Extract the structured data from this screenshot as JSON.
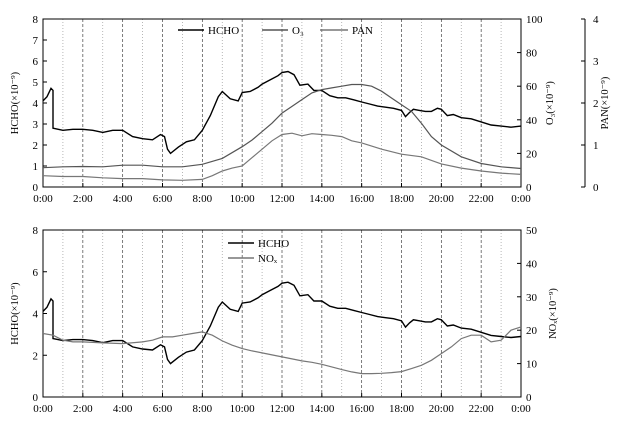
{
  "chart_data": [
    {
      "type": "line",
      "x_ticks": [
        "0:00",
        "2:00",
        "4:00",
        "6:00",
        "8:00",
        "10:00",
        "12:00",
        "14:00",
        "16:00",
        "18:00",
        "20:00",
        "22:00",
        "0:00"
      ],
      "xlim": [
        0,
        24
      ],
      "grid": "vertical dotted lines every hour, dashed at each 2 hours",
      "legend_position": "top-center",
      "axes": {
        "left": {
          "label": "HCHO(×10⁻⁹)",
          "ylim": [
            0,
            8
          ],
          "ticks": [
            "0",
            "1",
            "2",
            "3",
            "4",
            "5",
            "6",
            "7",
            "8"
          ]
        },
        "right1": {
          "label": "O₃(×10⁻⁹)",
          "ylim": [
            0,
            100
          ],
          "ticks": [
            "0",
            "20",
            "40",
            "60",
            "80",
            "100"
          ]
        },
        "right2": {
          "label": "PAN(×10⁻⁹)",
          "ylim": [
            0,
            4
          ],
          "ticks": [
            "0",
            "1",
            "2",
            "3",
            "4"
          ]
        }
      },
      "series": [
        {
          "name": "HCHO",
          "axis": "left",
          "color": "#000000",
          "x": [
            0,
            0.2,
            0.4,
            0.5,
            0.5,
            1,
            1.5,
            2,
            2.5,
            3,
            3.5,
            4,
            4.5,
            5,
            5.5,
            5.9,
            6.1,
            6.25,
            6.4,
            6.8,
            7.2,
            7.6,
            8,
            8.4,
            8.8,
            9,
            9.4,
            9.8,
            10,
            10.4,
            10.8,
            11,
            11.4,
            11.8,
            12,
            12.3,
            12.6,
            12.9,
            13.3,
            13.6,
            14,
            14.4,
            14.8,
            15.2,
            15.6,
            16,
            16.4,
            16.8,
            17.2,
            17.6,
            18,
            18.2,
            18.4,
            18.6,
            18.9,
            19.2,
            19.5,
            19.8,
            20,
            20.3,
            20.6,
            21,
            21.5,
            22,
            22.5,
            23,
            23.5,
            24
          ],
          "y": [
            4.1,
            4.3,
            4.7,
            4.6,
            2.8,
            2.7,
            2.75,
            2.75,
            2.7,
            2.6,
            2.7,
            2.7,
            2.4,
            2.3,
            2.25,
            2.5,
            2.4,
            1.8,
            1.6,
            1.9,
            2.15,
            2.25,
            2.7,
            3.4,
            4.3,
            4.55,
            4.2,
            4.1,
            4.5,
            4.55,
            4.75,
            4.9,
            5.1,
            5.3,
            5.45,
            5.5,
            5.35,
            4.85,
            4.9,
            4.6,
            4.6,
            4.35,
            4.25,
            4.25,
            4.15,
            4.05,
            3.95,
            3.85,
            3.8,
            3.75,
            3.65,
            3.35,
            3.55,
            3.7,
            3.65,
            3.6,
            3.6,
            3.75,
            3.7,
            3.4,
            3.45,
            3.3,
            3.25,
            3.1,
            2.95,
            2.9,
            2.85,
            2.9
          ]
        },
        {
          "name": "O₃",
          "axis": "right1",
          "color": "#555555",
          "x": [
            0,
            1,
            2,
            3,
            4,
            5,
            6,
            7,
            8,
            9,
            10,
            10.5,
            11,
            11.5,
            12,
            12.5,
            13,
            13.5,
            14,
            14.5,
            15,
            15.5,
            16,
            16.5,
            17,
            17.5,
            18,
            18.5,
            19,
            19.5,
            20,
            21,
            22,
            23,
            24
          ],
          "y": [
            11.5,
            12,
            12.2,
            12,
            13,
            13,
            12,
            12,
            13.5,
            17,
            24,
            28,
            33,
            38,
            44,
            48,
            52,
            56,
            58,
            59,
            60,
            61,
            61,
            60,
            57,
            53,
            49,
            45,
            38,
            30,
            25,
            18,
            14,
            12,
            11
          ]
        },
        {
          "name": "PAN",
          "axis": "right2",
          "color": "#777777",
          "x": [
            0,
            1,
            2,
            3,
            4,
            5,
            6,
            7,
            8,
            8.5,
            9,
            9.5,
            10,
            10.5,
            11,
            11.5,
            12,
            12.5,
            13,
            13.5,
            14,
            14.5,
            15,
            15.5,
            16,
            17,
            18,
            19,
            20,
            21,
            22,
            23,
            24
          ],
          "y": [
            0.27,
            0.25,
            0.25,
            0.22,
            0.2,
            0.2,
            0.17,
            0.16,
            0.18,
            0.27,
            0.38,
            0.45,
            0.5,
            0.7,
            0.9,
            1.1,
            1.25,
            1.28,
            1.22,
            1.27,
            1.25,
            1.23,
            1.2,
            1.1,
            1.05,
            0.9,
            0.78,
            0.72,
            0.55,
            0.45,
            0.38,
            0.33,
            0.3
          ]
        }
      ]
    },
    {
      "type": "line",
      "x_ticks": [
        "0:00",
        "2:00",
        "4:00",
        "6:00",
        "8:00",
        "10:00",
        "12:00",
        "14:00",
        "16:00",
        "18:00",
        "20:00",
        "22:00",
        "0:00"
      ],
      "xlim": [
        0,
        24
      ],
      "grid": "vertical dotted lines every hour, dashed at each 2 hours",
      "legend_position": "top-center",
      "axes": {
        "left": {
          "label": "HCHO(×10⁻⁹)",
          "ylim": [
            0,
            8
          ],
          "ticks": [
            "0",
            "2",
            "4",
            "6",
            "8"
          ]
        },
        "right": {
          "label": "NOₓ(×10⁻⁹)",
          "ylim": [
            0,
            50
          ],
          "ticks": [
            "0",
            "10",
            "20",
            "30",
            "40",
            "50"
          ]
        }
      },
      "series": [
        {
          "name": "HCHO",
          "axis": "left",
          "color": "#000000",
          "x": [
            0,
            0.2,
            0.4,
            0.5,
            0.5,
            1,
            1.5,
            2,
            2.5,
            3,
            3.5,
            4,
            4.5,
            5,
            5.5,
            5.9,
            6.1,
            6.25,
            6.4,
            6.8,
            7.2,
            7.6,
            8,
            8.4,
            8.8,
            9,
            9.4,
            9.8,
            10,
            10.4,
            10.8,
            11,
            11.4,
            11.8,
            12,
            12.3,
            12.6,
            12.9,
            13.3,
            13.6,
            14,
            14.4,
            14.8,
            15.2,
            15.6,
            16,
            16.4,
            16.8,
            17.2,
            17.6,
            18,
            18.2,
            18.4,
            18.6,
            18.9,
            19.2,
            19.5,
            19.8,
            20,
            20.3,
            20.6,
            21,
            21.5,
            22,
            22.5,
            23,
            23.5,
            24
          ],
          "y": [
            4.1,
            4.3,
            4.7,
            4.6,
            2.8,
            2.7,
            2.75,
            2.75,
            2.7,
            2.6,
            2.7,
            2.7,
            2.4,
            2.3,
            2.25,
            2.5,
            2.4,
            1.8,
            1.6,
            1.9,
            2.15,
            2.25,
            2.7,
            3.4,
            4.3,
            4.55,
            4.2,
            4.1,
            4.5,
            4.55,
            4.75,
            4.9,
            5.1,
            5.3,
            5.45,
            5.5,
            5.35,
            4.85,
            4.9,
            4.6,
            4.6,
            4.35,
            4.25,
            4.25,
            4.15,
            4.05,
            3.95,
            3.85,
            3.8,
            3.75,
            3.65,
            3.35,
            3.55,
            3.7,
            3.65,
            3.6,
            3.6,
            3.75,
            3.7,
            3.4,
            3.45,
            3.3,
            3.25,
            3.1,
            2.95,
            2.9,
            2.85,
            2.9
          ]
        },
        {
          "name": "NOₓ",
          "axis": "right",
          "color": "#777777",
          "x": [
            0,
            0.5,
            1,
            1.5,
            2,
            3,
            4,
            5,
            5.5,
            6,
            6.5,
            7,
            7.5,
            8,
            8.5,
            9,
            9.5,
            10,
            10.5,
            11,
            11.5,
            12,
            12.5,
            13,
            13.5,
            14,
            14.5,
            15,
            15.5,
            16,
            16.5,
            17,
            17.5,
            18,
            18.5,
            19,
            19.5,
            20,
            20.5,
            21,
            21.5,
            22,
            22.5,
            23,
            23.5,
            24
          ],
          "y": [
            19,
            18.5,
            17,
            16.5,
            16.5,
            16.2,
            16,
            16.5,
            17,
            18,
            18,
            18.5,
            19,
            19.5,
            18.5,
            16.8,
            15.5,
            14.5,
            13.8,
            13.2,
            12.6,
            12,
            11.4,
            10.8,
            10.4,
            9.8,
            9,
            8.2,
            7.5,
            7,
            7,
            7.1,
            7.3,
            7.6,
            8.5,
            9.5,
            11,
            13,
            15,
            17.5,
            18.5,
            18.5,
            16.5,
            17,
            20,
            21
          ]
        }
      ]
    }
  ],
  "legend": {
    "top": [
      "HCHO",
      "O₃",
      "PAN"
    ],
    "bottom": [
      "HCHO",
      "NOₓ"
    ]
  }
}
